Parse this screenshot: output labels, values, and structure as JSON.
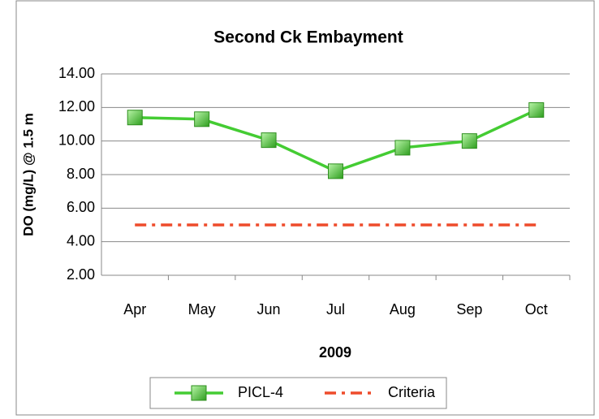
{
  "chart_data": {
    "type": "line",
    "title": "Second Ck Embayment",
    "x_label": "2009",
    "y_label": "DO (mg/L) @ 1.5 m",
    "categories": [
      "Apr",
      "May",
      "Jun",
      "Jul",
      "Aug",
      "Sep",
      "Oct"
    ],
    "series": [
      {
        "name": "PICL-4",
        "color": "#44cc33",
        "line_style": "solid",
        "marker": "square",
        "values": [
          11.4,
          11.3,
          10.05,
          8.2,
          9.6,
          10.0,
          11.85
        ]
      },
      {
        "name": "Criteria",
        "color": "#ee4b2b",
        "line_style": "dash-dot",
        "marker": "none",
        "values": [
          5.0,
          5.0,
          5.0,
          5.0,
          5.0,
          5.0,
          5.0
        ]
      }
    ],
    "ylim": [
      2,
      14
    ],
    "yticks": [
      {
        "value": 2,
        "label": "2.00"
      },
      {
        "value": 4,
        "label": "4.00"
      },
      {
        "value": 6,
        "label": "6.00"
      },
      {
        "value": 8,
        "label": "8.00"
      },
      {
        "value": 10,
        "label": "10.00"
      },
      {
        "value": 12,
        "label": "12.00"
      },
      {
        "value": 14,
        "label": "14.00"
      }
    ],
    "grid": true,
    "legend": "bottom"
  }
}
